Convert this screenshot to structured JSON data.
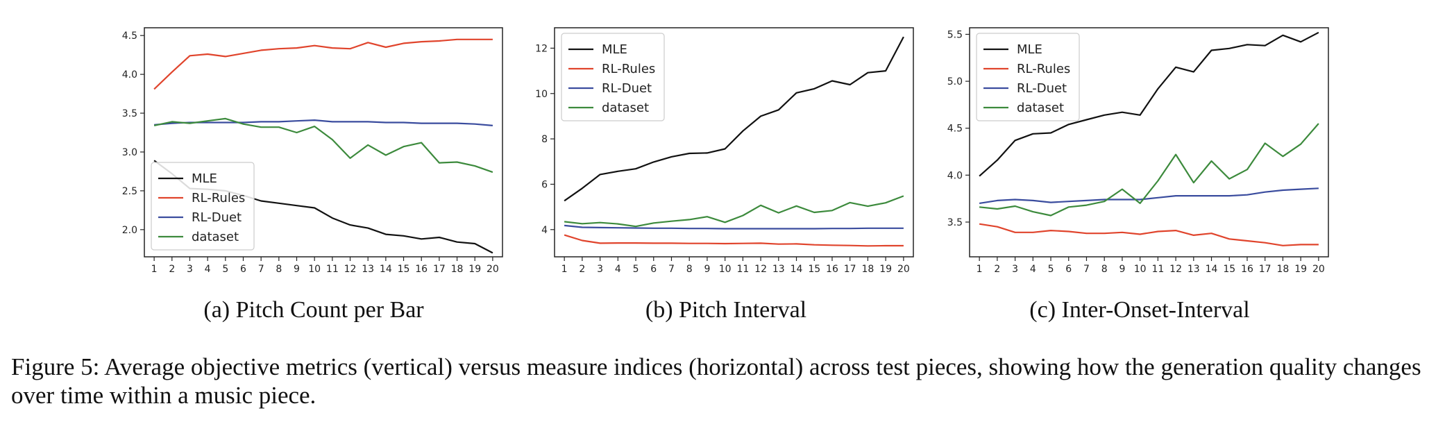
{
  "chart_data": [
    {
      "type": "line",
      "caption": "(a) Pitch Count per Bar",
      "x": [
        1,
        2,
        3,
        4,
        5,
        6,
        7,
        8,
        9,
        10,
        11,
        12,
        13,
        14,
        15,
        16,
        17,
        18,
        19,
        20
      ],
      "ylim": [
        1.65,
        4.6
      ],
      "yticks": [
        "2.0",
        "2.5",
        "3.0",
        "3.5",
        "4.0",
        "4.5"
      ],
      "legend_position": "lower-left",
      "series": [
        {
          "name": "MLE",
          "color": "#111111",
          "values": [
            2.89,
            2.72,
            2.53,
            2.52,
            2.5,
            2.44,
            2.37,
            2.34,
            2.31,
            2.28,
            2.15,
            2.06,
            2.02,
            1.94,
            1.92,
            1.88,
            1.9,
            1.84,
            1.82,
            1.7
          ]
        },
        {
          "name": "RL-Rules",
          "color": "#e0442c",
          "values": [
            3.81,
            4.03,
            4.24,
            4.26,
            4.23,
            4.27,
            4.31,
            4.33,
            4.34,
            4.37,
            4.34,
            4.33,
            4.41,
            4.35,
            4.4,
            4.42,
            4.43,
            4.45,
            4.45,
            4.45
          ]
        },
        {
          "name": "RL-Duet",
          "color": "#3a4c9e",
          "values": [
            3.35,
            3.37,
            3.38,
            3.38,
            3.38,
            3.38,
            3.39,
            3.39,
            3.4,
            3.41,
            3.39,
            3.39,
            3.39,
            3.38,
            3.38,
            3.37,
            3.37,
            3.37,
            3.36,
            3.34
          ]
        },
        {
          "name": "dataset",
          "color": "#3c8a3c",
          "values": [
            3.34,
            3.39,
            3.37,
            3.4,
            3.43,
            3.36,
            3.32,
            3.32,
            3.25,
            3.33,
            3.16,
            2.92,
            3.09,
            2.96,
            3.07,
            3.12,
            2.86,
            2.87,
            2.82,
            2.74
          ]
        }
      ]
    },
    {
      "type": "line",
      "caption": "(b) Pitch Interval",
      "x": [
        1,
        2,
        3,
        4,
        5,
        6,
        7,
        8,
        9,
        10,
        11,
        12,
        13,
        14,
        15,
        16,
        17,
        18,
        19,
        20
      ],
      "ylim": [
        2.8,
        12.9
      ],
      "yticks": [
        "4",
        "6",
        "8",
        "10",
        "12"
      ],
      "legend_position": "upper-left",
      "series": [
        {
          "name": "MLE",
          "color": "#111111",
          "values": [
            5.27,
            5.82,
            6.43,
            6.57,
            6.68,
            6.98,
            7.21,
            7.36,
            7.38,
            7.56,
            8.35,
            9.0,
            9.28,
            10.03,
            10.21,
            10.56,
            10.39,
            10.92,
            11.0,
            12.5
          ]
        },
        {
          "name": "RL-Rules",
          "color": "#e0442c",
          "values": [
            3.76,
            3.52,
            3.4,
            3.41,
            3.41,
            3.4,
            3.4,
            3.39,
            3.39,
            3.38,
            3.39,
            3.4,
            3.36,
            3.37,
            3.33,
            3.31,
            3.3,
            3.28,
            3.29,
            3.29
          ]
        },
        {
          "name": "RL-Duet",
          "color": "#3a4c9e",
          "values": [
            4.18,
            4.1,
            4.09,
            4.08,
            4.07,
            4.06,
            4.06,
            4.05,
            4.05,
            4.04,
            4.04,
            4.04,
            4.04,
            4.04,
            4.04,
            4.05,
            4.05,
            4.06,
            4.06,
            4.06
          ]
        },
        {
          "name": "dataset",
          "color": "#3c8a3c",
          "values": [
            4.35,
            4.26,
            4.31,
            4.25,
            4.14,
            4.29,
            4.37,
            4.44,
            4.57,
            4.32,
            4.62,
            5.07,
            4.74,
            5.04,
            4.76,
            4.84,
            5.19,
            5.03,
            5.18,
            5.48
          ]
        }
      ]
    },
    {
      "type": "line",
      "caption": "(c) Inter-Onset-Interval",
      "x": [
        1,
        2,
        3,
        4,
        5,
        6,
        7,
        8,
        9,
        10,
        11,
        12,
        13,
        14,
        15,
        16,
        17,
        18,
        19,
        20
      ],
      "ylim": [
        3.13,
        5.57
      ],
      "yticks": [
        "3.5",
        "4.0",
        "4.5",
        "5.0",
        "5.5"
      ],
      "legend_position": "upper-left",
      "series": [
        {
          "name": "MLE",
          "color": "#111111",
          "values": [
            3.99,
            4.16,
            4.37,
            4.44,
            4.45,
            4.54,
            4.59,
            4.64,
            4.67,
            4.64,
            4.92,
            5.15,
            5.1,
            5.33,
            5.35,
            5.39,
            5.38,
            5.49,
            5.42,
            5.52
          ]
        },
        {
          "name": "RL-Rules",
          "color": "#e0442c",
          "values": [
            3.48,
            3.45,
            3.39,
            3.39,
            3.41,
            3.4,
            3.38,
            3.38,
            3.39,
            3.37,
            3.4,
            3.41,
            3.36,
            3.38,
            3.32,
            3.3,
            3.28,
            3.25,
            3.26,
            3.26
          ]
        },
        {
          "name": "RL-Duet",
          "color": "#3a4c9e",
          "values": [
            3.7,
            3.73,
            3.74,
            3.73,
            3.71,
            3.72,
            3.73,
            3.74,
            3.74,
            3.74,
            3.76,
            3.78,
            3.78,
            3.78,
            3.78,
            3.79,
            3.82,
            3.84,
            3.85,
            3.86
          ]
        },
        {
          "name": "dataset",
          "color": "#3c8a3c",
          "values": [
            3.66,
            3.64,
            3.67,
            3.61,
            3.57,
            3.66,
            3.68,
            3.72,
            3.85,
            3.7,
            3.94,
            4.22,
            3.92,
            4.15,
            3.96,
            4.06,
            4.34,
            4.2,
            4.33,
            4.55
          ]
        }
      ]
    }
  ],
  "figure_caption": "Figure 5: Average objective metrics (vertical) versus measure indices (horizontal) across test pieces, showing how the generation quality changes over time within a music piece."
}
